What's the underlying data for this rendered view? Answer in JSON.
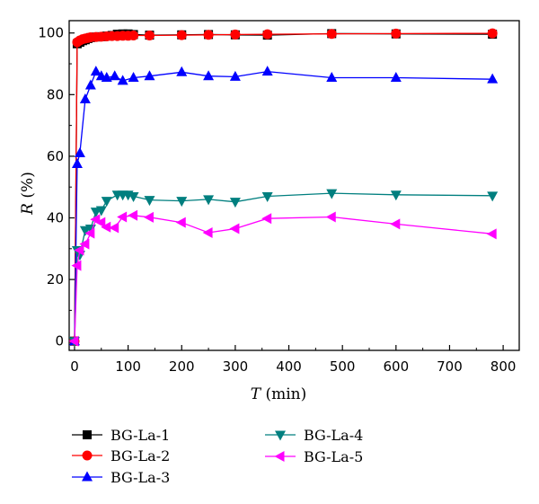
{
  "chart_data": {
    "type": "line",
    "xlabel": {
      "var": "T",
      "unit": " (min)"
    },
    "ylabel": {
      "var": "R",
      "unit": " (%)"
    },
    "xlim": [
      -10,
      830
    ],
    "ylim": [
      -3,
      104
    ],
    "xticks": [
      0,
      100,
      200,
      300,
      400,
      500,
      600,
      700,
      800
    ],
    "yticks": [
      0,
      20,
      40,
      60,
      80,
      100
    ],
    "xtick_labels": [
      "0",
      "100",
      "200",
      "300",
      "400",
      "500",
      "600",
      "700",
      "800"
    ],
    "ytick_labels": [
      "0",
      "20",
      "40",
      "60",
      "80",
      "100"
    ],
    "grid": false,
    "legend_position": "bottom",
    "series": [
      {
        "name": "BG-La-1",
        "color": "#000000",
        "marker": "square",
        "x": [
          0,
          5,
          10,
          15,
          20,
          25,
          30,
          40,
          50,
          60,
          70,
          80,
          90,
          100,
          110,
          140,
          200,
          250,
          300,
          360,
          480,
          600,
          780
        ],
        "y": [
          0,
          96.5,
          97,
          97.5,
          97.8,
          98.2,
          98.5,
          98.7,
          98.8,
          99,
          99.2,
          99.6,
          99.7,
          99.7,
          99.5,
          99.3,
          99.4,
          99.5,
          99.4,
          99.3,
          99.8,
          99.7,
          99.6
        ]
      },
      {
        "name": "BG-La-2",
        "color": "#ff0000",
        "marker": "circle",
        "x": [
          0,
          5,
          10,
          15,
          20,
          25,
          30,
          40,
          50,
          60,
          70,
          80,
          90,
          100,
          110,
          140,
          200,
          250,
          300,
          360,
          480,
          600,
          780
        ],
        "y": [
          0,
          97,
          97.6,
          98,
          98.2,
          98.4,
          98.6,
          98.7,
          98.8,
          98.9,
          99,
          99,
          99.1,
          99.1,
          99.2,
          99.2,
          99.3,
          99.4,
          99.5,
          99.6,
          99.7,
          99.8,
          99.9
        ]
      },
      {
        "name": "BG-La-3",
        "color": "#0000ff",
        "marker": "triangle-up",
        "x": [
          0,
          5,
          10,
          20,
          30,
          40,
          50,
          60,
          75,
          90,
          110,
          140,
          200,
          250,
          300,
          360,
          480,
          600,
          780
        ],
        "y": [
          0,
          57.5,
          61,
          78.5,
          83,
          87.5,
          86,
          85.5,
          86,
          84.5,
          85.5,
          86,
          87.3,
          86,
          85.8,
          87.5,
          85.5,
          85.5,
          85
        ]
      },
      {
        "name": "BG-La-4",
        "color": "#007f7f",
        "marker": "triangle-down",
        "x": [
          0,
          5,
          10,
          20,
          30,
          40,
          50,
          60,
          80,
          90,
          100,
          110,
          140,
          200,
          250,
          300,
          360,
          480,
          600,
          780
        ],
        "y": [
          0,
          29.5,
          28,
          36,
          36.5,
          42,
          42.5,
          45.5,
          47.5,
          47.5,
          47.5,
          47,
          45.8,
          45.5,
          46,
          45.2,
          47,
          48,
          47.5,
          47.2
        ]
      },
      {
        "name": "BG-La-5",
        "color": "#ff00ff",
        "marker": "triangle-left",
        "x": [
          0,
          5,
          10,
          20,
          30,
          40,
          50,
          60,
          75,
          90,
          110,
          140,
          200,
          250,
          300,
          360,
          480,
          600,
          780
        ],
        "y": [
          0,
          24.5,
          29.5,
          31.5,
          35,
          39.5,
          38.5,
          37,
          36.8,
          40.3,
          40.8,
          40.2,
          38.5,
          35.2,
          36.5,
          39.8,
          40.3,
          38,
          34.8
        ]
      }
    ]
  }
}
